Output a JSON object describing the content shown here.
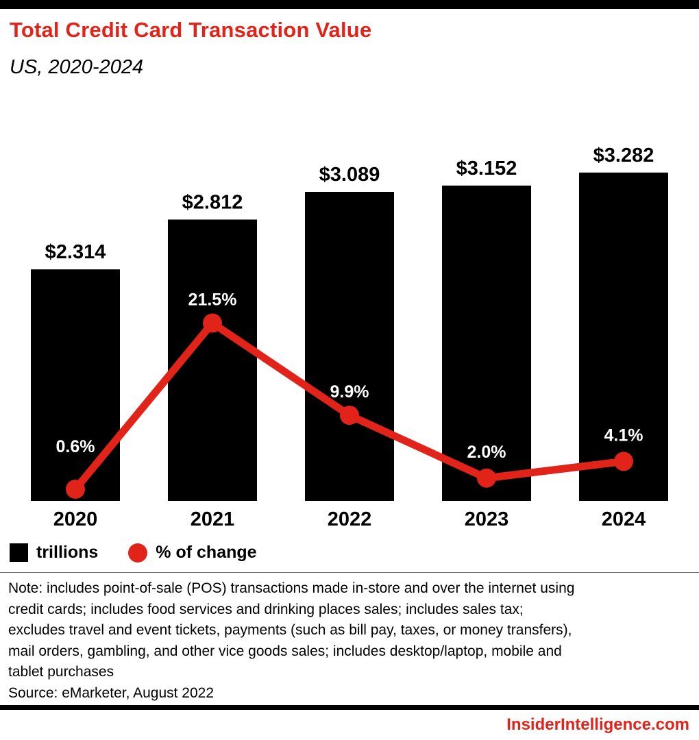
{
  "header": {
    "title": "Total Credit Card Transaction Value",
    "subtitle": "US, 2020-2024"
  },
  "chart_data": {
    "type": "bar",
    "categories": [
      "2020",
      "2021",
      "2022",
      "2023",
      "2024"
    ],
    "series": [
      {
        "name": "trillions",
        "type": "bar",
        "color": "#000000",
        "values": [
          2.314,
          2.812,
          3.089,
          3.152,
          3.282
        ],
        "labels": [
          "$2.314",
          "$2.812",
          "$3.089",
          "$3.152",
          "$3.282"
        ]
      },
      {
        "name": "% of change",
        "type": "line",
        "color": "#e2231a",
        "values": [
          0.6,
          21.5,
          9.9,
          2.0,
          4.1
        ],
        "labels": [
          "0.6%",
          "21.5%",
          "9.9%",
          "2.0%",
          "4.1%"
        ]
      }
    ],
    "title": "Total Credit Card Transaction Value",
    "xlabel": "",
    "ylabel": "",
    "grid": false,
    "legend_position": "bottom",
    "bar_unit": "trillions USD"
  },
  "legend": {
    "bar_label": "trillions",
    "line_label": "% of change"
  },
  "note": {
    "lines": [
      "Note: includes point-of-sale (POS) transactions made in-store and over the internet using",
      "credit cards; includes food services and drinking places sales; includes sales tax;",
      "excludes travel and event tickets, payments (such as bill pay, taxes, or money transfers),",
      "mail orders, gambling, and other vice goods sales; includes desktop/laptop, mobile and",
      "tablet purchases"
    ]
  },
  "source": "Source: eMarketer, August 2022",
  "branding": "InsiderIntelligence.com",
  "colors": {
    "accent": "#e2231a",
    "bar": "#000000"
  }
}
